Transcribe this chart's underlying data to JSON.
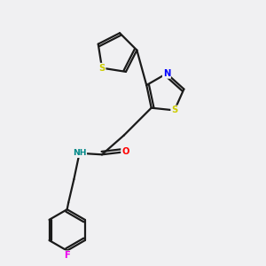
{
  "bg_color": "#f0f0f2",
  "bond_color": "#1a1a1a",
  "atom_colors": {
    "S": "#cccc00",
    "N": "#0000ff",
    "O": "#ff0000",
    "F": "#ee00ee",
    "NH": "#008888",
    "C": "#1a1a1a"
  },
  "figsize": [
    3.0,
    3.0
  ],
  "dpi": 100,
  "lw": 1.6,
  "fs": 7.2,
  "off": 0.01
}
